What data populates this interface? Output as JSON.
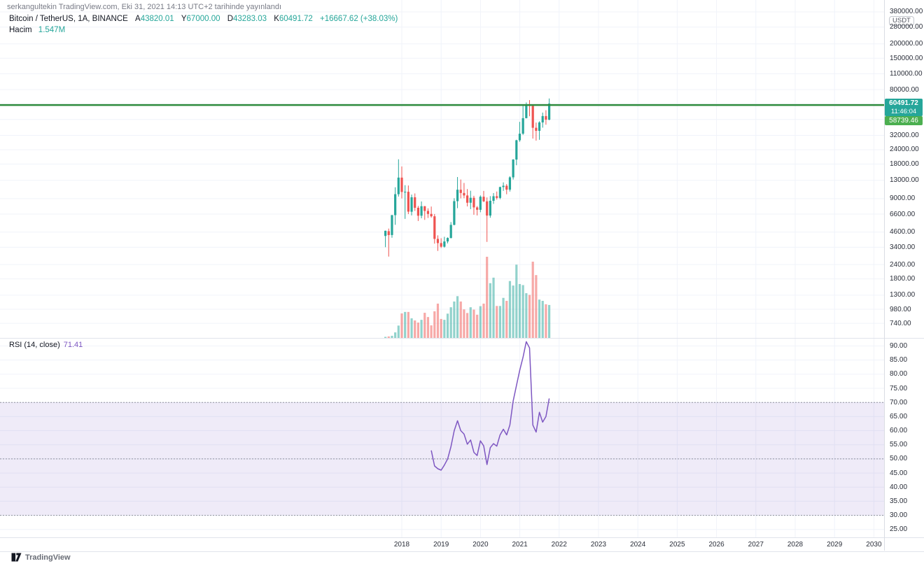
{
  "header": {
    "attribution": "serkangultekin TradingView.com, Eki 31, 2021 14:13 UTC+2 tarihinde yayınlandı"
  },
  "legend": {
    "symbol": "Bitcoin / TetherUS, 1A, BINANCE",
    "o_label": "A",
    "o": "43820.01",
    "h_label": "Y",
    "h": "67000.00",
    "l_label": "D",
    "l": "43283.03",
    "k_label": "K",
    "k": "60491.72",
    "change": "+16667.62 (+38.03%)",
    "volume_label": "Hacim",
    "volume": "1.547M"
  },
  "rsi_legend": {
    "label": "RSI (14, close)",
    "value": "71.41"
  },
  "price_scale": {
    "unit": "USDT",
    "current_price": "60491.72",
    "countdown": "11:46:04",
    "line_price": "58739.46"
  },
  "time_axis": {
    "years": [
      "2018",
      "2019",
      "2020",
      "2021",
      "2022",
      "2023",
      "2024",
      "2025",
      "2026",
      "2027",
      "2028",
      "2029",
      "2030"
    ]
  },
  "watermark": "TradingView",
  "colors": {
    "up": "#26a69a",
    "down": "#ef5350",
    "vol_up": "rgba(38,166,154,0.5)",
    "vol_down": "rgba(239,83,80,0.5)",
    "rsi_line": "#7e57c2",
    "rsi_band_fill": "rgba(126,87,194,0.12)",
    "rsi_band_line": "#90929c",
    "price_line": "#2f8b3e",
    "current_label_bg": "#26a69a",
    "line_label_bg": "#4caf50",
    "grid": "#f0f3fa",
    "border": "#e0e3eb",
    "text": "#131722"
  },
  "chart_data": {
    "type": "candlestick",
    "title": "Bitcoin / TetherUS monthly with volume and RSI",
    "interval": "1A",
    "exchange": "BINANCE",
    "scale": "log",
    "x": [
      "2017-08",
      "2017-09",
      "2017-10",
      "2017-11",
      "2017-12",
      "2018-01",
      "2018-02",
      "2018-03",
      "2018-04",
      "2018-05",
      "2018-06",
      "2018-07",
      "2018-08",
      "2018-09",
      "2018-10",
      "2018-11",
      "2018-12",
      "2019-01",
      "2019-02",
      "2019-03",
      "2019-04",
      "2019-05",
      "2019-06",
      "2019-07",
      "2019-08",
      "2019-09",
      "2019-10",
      "2019-11",
      "2019-12",
      "2020-01",
      "2020-02",
      "2020-03",
      "2020-04",
      "2020-05",
      "2020-06",
      "2020-07",
      "2020-08",
      "2020-09",
      "2020-10",
      "2020-11",
      "2020-12",
      "2021-01",
      "2021-02",
      "2021-03",
      "2021-04",
      "2021-05",
      "2021-06",
      "2021-07",
      "2021-08",
      "2021-09",
      "2021-10"
    ],
    "ohlc": [
      [
        4261,
        4745,
        3400,
        4724
      ],
      [
        4689,
        4939,
        2817,
        4338
      ],
      [
        4341,
        6498,
        4110,
        6463
      ],
      [
        6463,
        11300,
        5325,
        9838
      ],
      [
        9837,
        19798,
        9380,
        13716
      ],
      [
        13715,
        17176,
        9035,
        10285
      ],
      [
        10285,
        11786,
        6000,
        10325
      ],
      [
        10325,
        11710,
        6600,
        6936
      ],
      [
        6922,
        9759,
        6430,
        9246
      ],
      [
        9246,
        9990,
        7032,
        7494
      ],
      [
        7494,
        7780,
        5750,
        6390
      ],
      [
        6391,
        8507,
        6070,
        7730
      ],
      [
        7735,
        7760,
        5880,
        7033
      ],
      [
        7033,
        7412,
        6111,
        6625
      ],
      [
        6626,
        7680,
        6151,
        6318
      ],
      [
        6318,
        6615,
        3652,
        4017
      ],
      [
        4017,
        4312,
        3156,
        3693
      ],
      [
        3693,
        4069,
        3349,
        3434
      ],
      [
        3434,
        4190,
        3373,
        3814
      ],
      [
        3814,
        4140,
        3670,
        4092
      ],
      [
        4092,
        5627,
        4052,
        5320
      ],
      [
        5321,
        9074,
        5271,
        8555
      ],
      [
        8555,
        13880,
        7432,
        10760
      ],
      [
        10760,
        13200,
        9049,
        10080
      ],
      [
        10080,
        12325,
        9071,
        9590
      ],
      [
        9590,
        10898,
        7700,
        8290
      ],
      [
        8290,
        10540,
        7293,
        9150
      ],
      [
        9150,
        9530,
        6515,
        7550
      ],
      [
        7550,
        7760,
        6425,
        7195
      ],
      [
        7195,
        9599,
        6850,
        9350
      ],
      [
        9350,
        10500,
        8407,
        8523
      ],
      [
        8523,
        9219,
        3782,
        6410
      ],
      [
        6410,
        9460,
        6135,
        8620
      ],
      [
        8620,
        10067,
        8101,
        9448
      ],
      [
        9448,
        10380,
        8833,
        9135
      ],
      [
        9135,
        11444,
        8893,
        11351
      ],
      [
        11351,
        12468,
        10518,
        11650
      ],
      [
        11650,
        12050,
        9825,
        10776
      ],
      [
        10776,
        14100,
        10374,
        13791
      ],
      [
        13791,
        19863,
        13195,
        19700
      ],
      [
        19700,
        29300,
        17572,
        28990
      ],
      [
        28990,
        41950,
        28130,
        33100
      ],
      [
        33100,
        58352,
        32296,
        45160
      ],
      [
        45160,
        61844,
        44950,
        58740
      ],
      [
        58740,
        64854,
        46930,
        57720
      ],
      [
        57720,
        59500,
        30000,
        37250
      ],
      [
        37250,
        41330,
        28805,
        35040
      ],
      [
        35040,
        42448,
        29278,
        41460
      ],
      [
        41460,
        50500,
        37332,
        47100
      ],
      [
        47100,
        52920,
        39600,
        43820
      ],
      [
        43820.01,
        67000,
        43283.03,
        60491.72
      ]
    ],
    "volume_m": [
      0.05,
      0.07,
      0.1,
      0.26,
      0.58,
      1.15,
      1.22,
      1.22,
      0.92,
      0.82,
      0.72,
      0.85,
      1.18,
      0.98,
      0.59,
      1.25,
      1.61,
      0.89,
      0.85,
      1.14,
      1.44,
      1.71,
      1.96,
      1.71,
      1.34,
      1.17,
      1.44,
      1.33,
      1.09,
      1.49,
      1.61,
      3.81,
      2.57,
      2.83,
      1.5,
      1.5,
      1.88,
      1.74,
      2.67,
      2.46,
      3.44,
      2.53,
      2.48,
      2.1,
      2.02,
      3.58,
      2.95,
      1.8,
      1.74,
      1.58,
      1.547
    ],
    "rsi": {
      "period": 14,
      "source": "close",
      "start_index": 14,
      "current": 71.41,
      "bands": [
        70,
        50,
        30
      ],
      "values": [
        53,
        47.5,
        46.5,
        46,
        47.8,
        50,
        54.3,
        60,
        63.5,
        60,
        58.8,
        55.2,
        56.7,
        52.3,
        51.2,
        56.4,
        54.6,
        48,
        54,
        55.4,
        54.5,
        58.5,
        60.5,
        58.5,
        62,
        70.5,
        76,
        81.4,
        86,
        91.5,
        89.3,
        62,
        59.5,
        66.5,
        63,
        65,
        71.41
      ]
    },
    "price_line": 58739.46,
    "current_price": 60491.72,
    "price_axis_ticks": [
      380000,
      280000,
      200000,
      150000,
      110000,
      80000,
      32000,
      24000,
      18000,
      13000,
      9000,
      6600,
      4600,
      3400,
      2400,
      1800,
      1300,
      980,
      740
    ],
    "price_grid_only": [
      60000,
      44000
    ],
    "rsi_axis_ticks": [
      90,
      85,
      80,
      75,
      70,
      65,
      60,
      55,
      50,
      45,
      40,
      35,
      30,
      25
    ],
    "year_ticks": [
      2018,
      2019,
      2020,
      2021,
      2022,
      2023,
      2024,
      2025,
      2026,
      2027,
      2028,
      2029,
      2030
    ]
  }
}
